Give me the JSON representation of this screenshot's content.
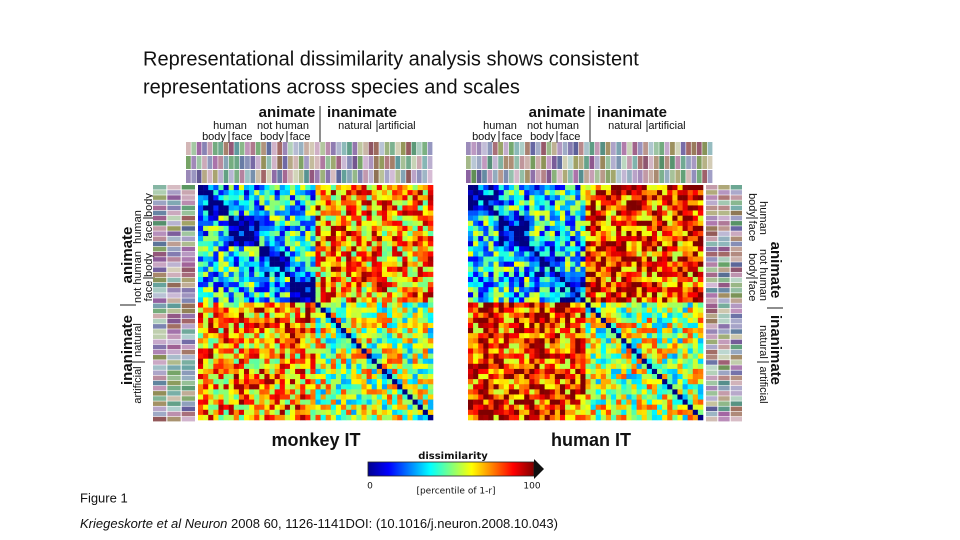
{
  "title_lines": [
    "Representational dissimilarity analysis shows consistent",
    "representations across species and scales"
  ],
  "figure": {
    "labels": {
      "animate": "animate",
      "inanimate": "inanimate",
      "human": "human",
      "not_human": "not human",
      "natural": "natural",
      "artificial": "artificial",
      "body": "body",
      "face": "face"
    },
    "panels": [
      "monkey IT",
      "human IT"
    ],
    "colorbar": {
      "title": "dissimilarity",
      "min": 0,
      "max": 100,
      "unit": "[percentile of 1-r]"
    }
  },
  "caption": {
    "label": "Figure 1",
    "citation_italic": "Kriegeskorte et al Neuron",
    "citation": "2008 60, 1126-1141DOI: (10.1016/j.neuron.2008.10.043)"
  }
}
